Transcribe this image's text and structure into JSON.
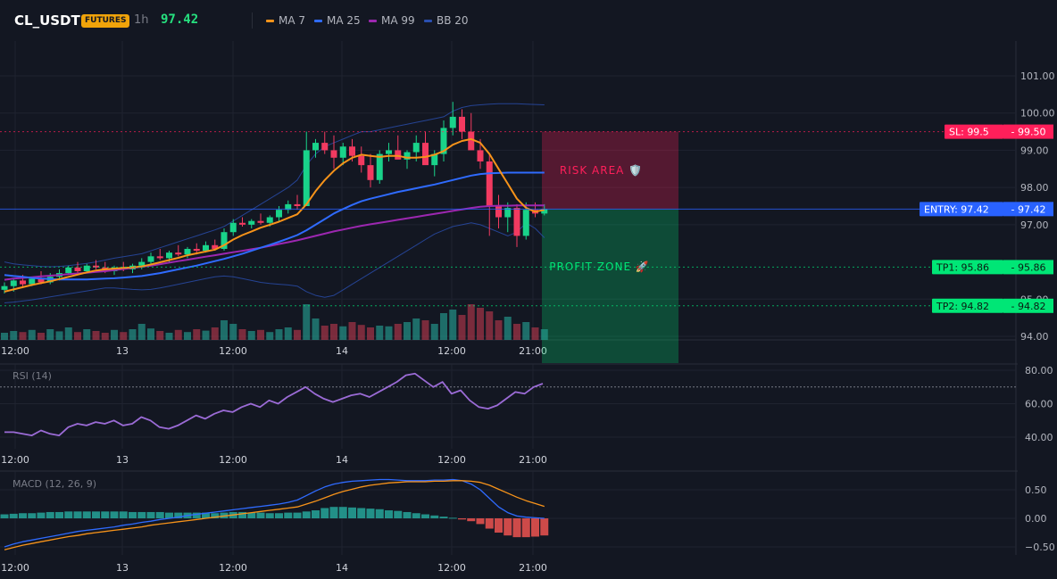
{
  "header": {
    "symbol": "CL_USDT",
    "badge": "FUTURES",
    "timeframe": "1h",
    "last_price": "97.42",
    "legend": [
      {
        "label": "MA 7",
        "color": "#f7931a"
      },
      {
        "label": "MA 25",
        "color": "#2f6bff"
      },
      {
        "label": "MA 99",
        "color": "#9c27b0"
      },
      {
        "label": "BB 20",
        "color": "#1e3f8a"
      }
    ]
  },
  "colors": {
    "up": "#19d38a",
    "down": "#f23a60",
    "bg": "#131722",
    "grid": "#1f2330"
  },
  "chart_data": [
    {
      "type": "candlestick",
      "name": "price",
      "y_ticks": [
        "101.00",
        "100.00",
        "99.00",
        "98.00",
        "97.00",
        "95.00",
        "94.00"
      ],
      "x_ticks": [
        "12:00",
        "13",
        "12:00",
        "14",
        "12:00",
        "21:00"
      ],
      "ylim": [
        93.8,
        101.3
      ],
      "candles_ohlc": [
        [
          95.25,
          95.45,
          95.15,
          95.35
        ],
        [
          95.35,
          95.55,
          95.2,
          95.5
        ],
        [
          95.5,
          95.65,
          95.3,
          95.4
        ],
        [
          95.4,
          95.6,
          95.35,
          95.55
        ],
        [
          95.55,
          95.75,
          95.4,
          95.45
        ],
        [
          95.45,
          95.7,
          95.4,
          95.6
        ],
        [
          95.6,
          95.8,
          95.5,
          95.7
        ],
        [
          95.7,
          95.9,
          95.65,
          95.85
        ],
        [
          95.85,
          96.0,
          95.7,
          95.75
        ],
        [
          95.75,
          95.95,
          95.7,
          95.9
        ],
        [
          95.9,
          96.05,
          95.8,
          95.85
        ],
        [
          95.85,
          96.0,
          95.7,
          95.75
        ],
        [
          95.75,
          95.9,
          95.65,
          95.85
        ],
        [
          95.85,
          96.0,
          95.75,
          95.8
        ],
        [
          95.8,
          95.95,
          95.7,
          95.9
        ],
        [
          95.9,
          96.1,
          95.8,
          96.0
        ],
        [
          96.0,
          96.25,
          95.9,
          96.15
        ],
        [
          96.15,
          96.35,
          96.05,
          96.1
        ],
        [
          96.1,
          96.3,
          96.0,
          96.25
        ],
        [
          96.25,
          96.45,
          96.15,
          96.2
        ],
        [
          96.2,
          96.4,
          96.1,
          96.35
        ],
        [
          96.35,
          96.5,
          96.2,
          96.3
        ],
        [
          96.3,
          96.55,
          96.25,
          96.45
        ],
        [
          96.45,
          96.6,
          96.3,
          96.35
        ],
        [
          96.35,
          96.9,
          96.3,
          96.8
        ],
        [
          96.8,
          97.15,
          96.7,
          97.05
        ],
        [
          97.05,
          97.2,
          96.95,
          97.0
        ],
        [
          97.0,
          97.15,
          96.9,
          97.1
        ],
        [
          97.1,
          97.3,
          97.0,
          97.05
        ],
        [
          97.05,
          97.25,
          96.95,
          97.2
        ],
        [
          97.2,
          97.5,
          97.1,
          97.4
        ],
        [
          97.4,
          97.65,
          97.3,
          97.55
        ],
        [
          97.55,
          97.8,
          97.4,
          97.5
        ],
        [
          97.5,
          99.5,
          97.5,
          99.0
        ],
        [
          99.0,
          99.3,
          98.8,
          99.2
        ],
        [
          99.2,
          99.5,
          98.9,
          99.0
        ],
        [
          99.0,
          99.4,
          98.5,
          98.8
        ],
        [
          98.8,
          99.2,
          98.6,
          99.1
        ],
        [
          99.1,
          99.3,
          98.7,
          98.85
        ],
        [
          98.85,
          99.1,
          98.4,
          98.6
        ],
        [
          98.6,
          98.9,
          98.0,
          98.2
        ],
        [
          98.2,
          99.0,
          98.1,
          98.9
        ],
        [
          98.9,
          99.2,
          98.7,
          99.0
        ],
        [
          99.0,
          99.4,
          98.8,
          98.75
        ],
        [
          98.75,
          99.0,
          98.5,
          98.95
        ],
        [
          98.95,
          99.4,
          98.7,
          99.2
        ],
        [
          99.2,
          99.5,
          98.8,
          98.6
        ],
        [
          98.6,
          99.0,
          98.3,
          98.9
        ],
        [
          98.9,
          99.8,
          98.7,
          99.6
        ],
        [
          99.6,
          100.3,
          99.4,
          99.9
        ],
        [
          99.9,
          100.1,
          99.3,
          99.5
        ],
        [
          99.5,
          100.0,
          99.2,
          99.0
        ],
        [
          99.0,
          99.3,
          98.5,
          98.7
        ],
        [
          98.7,
          98.9,
          96.7,
          97.5
        ],
        [
          97.5,
          97.8,
          96.9,
          97.2
        ],
        [
          97.2,
          97.6,
          96.8,
          97.45
        ],
        [
          97.45,
          97.55,
          96.4,
          96.7
        ],
        [
          96.7,
          97.6,
          96.6,
          97.4
        ],
        [
          97.4,
          97.6,
          97.2,
          97.3
        ],
        [
          97.3,
          97.55,
          97.25,
          97.42
        ]
      ],
      "volumes": [
        0.2,
        0.25,
        0.22,
        0.28,
        0.2,
        0.3,
        0.24,
        0.35,
        0.22,
        0.3,
        0.25,
        0.2,
        0.28,
        0.22,
        0.3,
        0.45,
        0.32,
        0.25,
        0.2,
        0.28,
        0.22,
        0.3,
        0.26,
        0.35,
        0.55,
        0.45,
        0.3,
        0.25,
        0.28,
        0.22,
        0.3,
        0.35,
        0.28,
        1.0,
        0.6,
        0.4,
        0.45,
        0.38,
        0.5,
        0.42,
        0.35,
        0.4,
        0.38,
        0.45,
        0.5,
        0.6,
        0.55,
        0.45,
        0.75,
        0.85,
        0.7,
        1.0,
        0.9,
        0.8,
        0.55,
        0.65,
        0.45,
        0.5,
        0.35,
        0.3
      ],
      "ma7": [
        95.2,
        95.26,
        95.32,
        95.38,
        95.43,
        95.48,
        95.54,
        95.6,
        95.66,
        95.72,
        95.77,
        95.8,
        95.82,
        95.84,
        95.85,
        95.88,
        95.93,
        95.99,
        96.05,
        96.11,
        96.18,
        96.23,
        96.28,
        96.33,
        96.45,
        96.6,
        96.72,
        96.82,
        96.92,
        97.0,
        97.08,
        97.18,
        97.28,
        97.55,
        97.9,
        98.2,
        98.45,
        98.65,
        98.8,
        98.88,
        98.85,
        98.82,
        98.85,
        98.85,
        98.8,
        98.8,
        98.82,
        98.88,
        98.98,
        99.15,
        99.25,
        99.3,
        99.2,
        98.9,
        98.5,
        98.1,
        97.7,
        97.45,
        97.35,
        97.4
      ],
      "ma25": [
        95.65,
        95.62,
        95.6,
        95.57,
        95.55,
        95.54,
        95.53,
        95.53,
        95.53,
        95.53,
        95.54,
        95.55,
        95.56,
        95.58,
        95.6,
        95.62,
        95.66,
        95.7,
        95.75,
        95.8,
        95.85,
        95.9,
        95.96,
        96.02,
        96.08,
        96.15,
        96.22,
        96.3,
        96.38,
        96.46,
        96.54,
        96.63,
        96.72,
        96.85,
        97.0,
        97.15,
        97.3,
        97.42,
        97.53,
        97.63,
        97.7,
        97.76,
        97.82,
        97.88,
        97.93,
        97.98,
        98.03,
        98.08,
        98.14,
        98.2,
        98.26,
        98.32,
        98.36,
        98.38,
        98.39,
        98.4,
        98.4,
        98.4,
        98.4,
        98.4
      ],
      "ma99": [
        95.52,
        95.55,
        95.57,
        95.59,
        95.61,
        95.63,
        95.65,
        95.67,
        95.69,
        95.71,
        95.73,
        95.75,
        95.78,
        95.81,
        95.84,
        95.87,
        95.9,
        95.94,
        95.98,
        96.02,
        96.06,
        96.1,
        96.14,
        96.18,
        96.22,
        96.26,
        96.3,
        96.34,
        96.38,
        96.43,
        96.48,
        96.53,
        96.58,
        96.64,
        96.7,
        96.76,
        96.82,
        96.87,
        96.92,
        96.97,
        97.01,
        97.05,
        97.09,
        97.13,
        97.17,
        97.21,
        97.25,
        97.29,
        97.33,
        97.37,
        97.41,
        97.45,
        97.48,
        97.5,
        97.51,
        97.51,
        97.52,
        97.52,
        97.52,
        97.52
      ],
      "bb_upper": [
        96.0,
        95.95,
        95.92,
        95.9,
        95.88,
        95.87,
        95.88,
        95.9,
        95.93,
        95.96,
        96.0,
        96.05,
        96.1,
        96.14,
        96.18,
        96.22,
        96.3,
        96.38,
        96.46,
        96.54,
        96.62,
        96.7,
        96.78,
        96.86,
        96.95,
        97.1,
        97.25,
        97.4,
        97.55,
        97.7,
        97.85,
        98.0,
        98.2,
        98.6,
        98.9,
        99.1,
        99.2,
        99.3,
        99.4,
        99.5,
        99.5,
        99.55,
        99.6,
        99.65,
        99.7,
        99.75,
        99.8,
        99.85,
        99.9,
        100.05,
        100.15,
        100.2,
        100.22,
        100.24,
        100.25,
        100.25,
        100.25,
        100.24,
        100.23,
        100.22
      ],
      "bb_lower": [
        94.9,
        94.92,
        94.95,
        94.98,
        95.02,
        95.06,
        95.1,
        95.14,
        95.18,
        95.22,
        95.26,
        95.3,
        95.3,
        95.28,
        95.26,
        95.25,
        95.26,
        95.3,
        95.35,
        95.4,
        95.45,
        95.5,
        95.55,
        95.6,
        95.62,
        95.6,
        95.55,
        95.5,
        95.45,
        95.42,
        95.4,
        95.38,
        95.35,
        95.2,
        95.1,
        95.05,
        95.1,
        95.25,
        95.4,
        95.55,
        95.7,
        95.85,
        96.0,
        96.15,
        96.3,
        96.45,
        96.6,
        96.75,
        96.85,
        96.95,
        97.0,
        97.05,
        97.0,
        96.9,
        96.8,
        96.7,
        96.8,
        97.05,
        96.9,
        96.65
      ],
      "levels": [
        {
          "label": "SL: 99.5",
          "value": "99.50",
          "price": 99.5,
          "color": "#ff1f5a"
        },
        {
          "label": "ENTRY: 97.42",
          "value": "97.42",
          "price": 97.42,
          "color": "#2962ff"
        },
        {
          "label": "TP1: 95.86",
          "value": "95.86",
          "price": 95.86,
          "color": "#00e676"
        },
        {
          "label": "TP2: 94.82",
          "value": "94.82",
          "price": 94.82,
          "color": "#00e676"
        }
      ],
      "zones": [
        {
          "label": "RISK AREA 🛡️",
          "from": 97.42,
          "to": 99.5,
          "color": "#ff1f5a"
        },
        {
          "label": "PROFIT ZONE 🚀",
          "from": 94.82,
          "to": 97.42,
          "color": "#00e676"
        }
      ]
    },
    {
      "type": "line",
      "name": "RSI (14)",
      "y_ticks": [
        "80.00",
        "60.00",
        "40.00"
      ],
      "ylim": [
        34,
        84
      ],
      "reference_line": 70,
      "values": [
        43,
        43,
        42,
        41,
        44,
        42,
        41,
        46,
        48,
        47,
        49,
        48,
        50,
        47,
        48,
        52,
        50,
        46,
        45,
        47,
        50,
        53,
        51,
        54,
        56,
        55,
        58,
        60,
        58,
        62,
        60,
        64,
        67,
        70,
        66,
        63,
        61,
        63,
        65,
        66,
        64,
        67,
        70,
        73,
        77,
        78,
        74,
        70,
        73,
        66,
        68,
        62,
        58,
        57,
        59,
        63,
        67,
        66,
        70,
        72
      ]
    },
    {
      "type": "bar+line",
      "name": "MACD (12, 26, 9)",
      "y_ticks": [
        "0.50",
        "0.00",
        "−0.50"
      ],
      "ylim": [
        -0.72,
        0.82
      ],
      "histogram": [
        0.07,
        0.08,
        0.09,
        0.09,
        0.1,
        0.11,
        0.11,
        0.12,
        0.12,
        0.12,
        0.12,
        0.12,
        0.12,
        0.12,
        0.11,
        0.11,
        0.11,
        0.11,
        0.1,
        0.1,
        0.1,
        0.1,
        0.1,
        0.09,
        0.1,
        0.11,
        0.11,
        0.1,
        0.1,
        0.09,
        0.09,
        0.1,
        0.1,
        0.12,
        0.14,
        0.18,
        0.2,
        0.2,
        0.19,
        0.18,
        0.17,
        0.16,
        0.14,
        0.13,
        0.11,
        0.09,
        0.07,
        0.05,
        0.03,
        0.01,
        -0.02,
        -0.05,
        -0.1,
        -0.18,
        -0.25,
        -0.3,
        -0.33,
        -0.33,
        -0.32,
        -0.3
      ],
      "macd_line": [
        -0.5,
        -0.45,
        -0.41,
        -0.38,
        -0.35,
        -0.32,
        -0.29,
        -0.26,
        -0.23,
        -0.21,
        -0.19,
        -0.17,
        -0.15,
        -0.12,
        -0.1,
        -0.07,
        -0.05,
        -0.02,
        0.0,
        0.02,
        0.05,
        0.07,
        0.09,
        0.11,
        0.13,
        0.15,
        0.17,
        0.19,
        0.21,
        0.23,
        0.25,
        0.28,
        0.32,
        0.4,
        0.48,
        0.55,
        0.6,
        0.63,
        0.65,
        0.66,
        0.67,
        0.68,
        0.68,
        0.67,
        0.66,
        0.66,
        0.66,
        0.67,
        0.67,
        0.68,
        0.66,
        0.6,
        0.5,
        0.35,
        0.2,
        0.1,
        0.04,
        0.02,
        0.01,
        0.0
      ],
      "signal_line": [
        -0.55,
        -0.51,
        -0.47,
        -0.44,
        -0.41,
        -0.38,
        -0.35,
        -0.32,
        -0.3,
        -0.27,
        -0.25,
        -0.23,
        -0.21,
        -0.19,
        -0.17,
        -0.15,
        -0.12,
        -0.1,
        -0.08,
        -0.06,
        -0.04,
        -0.02,
        0.0,
        0.02,
        0.04,
        0.06,
        0.08,
        0.1,
        0.12,
        0.14,
        0.16,
        0.18,
        0.2,
        0.25,
        0.3,
        0.36,
        0.42,
        0.47,
        0.51,
        0.55,
        0.58,
        0.6,
        0.62,
        0.63,
        0.64,
        0.64,
        0.64,
        0.65,
        0.65,
        0.66,
        0.66,
        0.65,
        0.63,
        0.58,
        0.51,
        0.44,
        0.37,
        0.31,
        0.26,
        0.21
      ]
    }
  ]
}
